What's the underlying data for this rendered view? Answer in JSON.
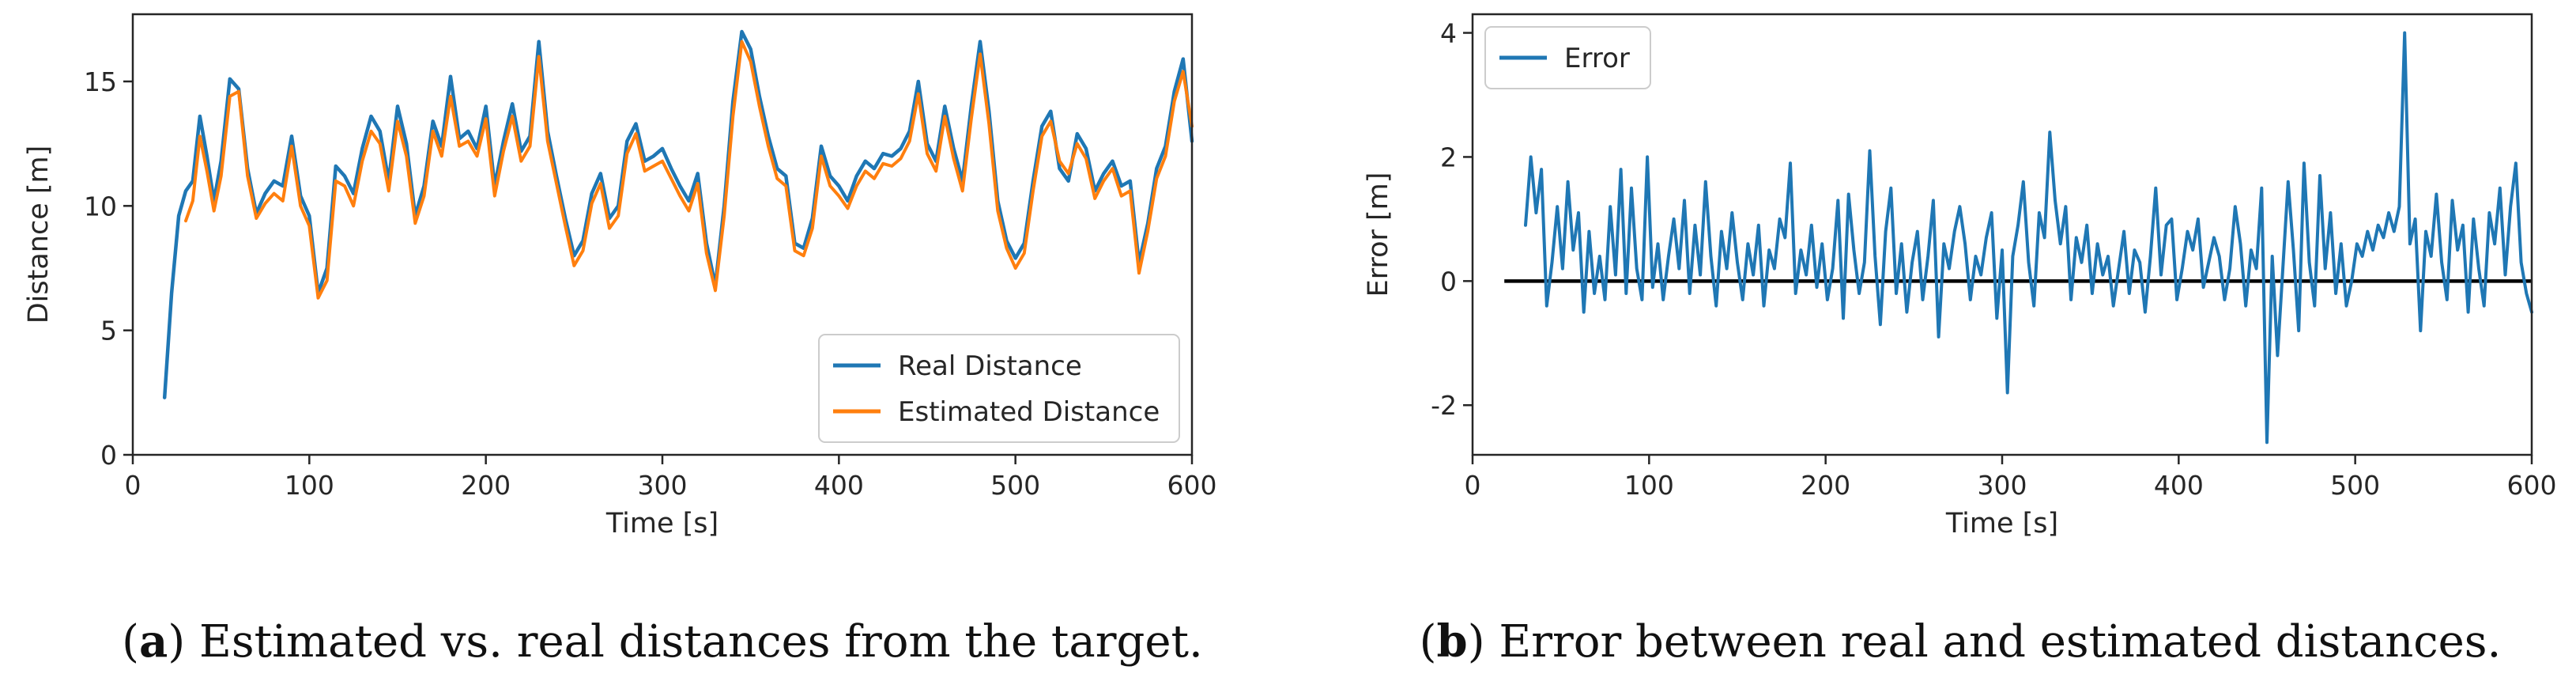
{
  "colors": {
    "real": "#1f77b4",
    "estimated": "#ff7f0e",
    "error": "#1f77b4",
    "zero_line": "#000000",
    "legend_border": "#cccccc"
  },
  "chart_data": [
    {
      "type": "line",
      "caption_letter": "a",
      "caption_open": "(",
      "caption_close": ")",
      "caption_text": " Estimated vs. real distances from the target.",
      "title": "",
      "xlabel": "Time [s]",
      "ylabel": "Distance [m]",
      "xlim": [
        0,
        600
      ],
      "ylim": [
        0,
        17.7
      ],
      "xticks": [
        0,
        100,
        200,
        300,
        400,
        500,
        600
      ],
      "yticks": [
        0,
        5,
        10,
        15
      ],
      "grid": false,
      "legend_position": "lower-right",
      "series": [
        {
          "name": "Real Distance",
          "x": [
            18,
            22,
            26,
            30,
            34,
            38,
            42,
            46,
            50,
            55,
            60,
            65,
            70,
            75,
            80,
            85,
            90,
            95,
            100,
            105,
            110,
            115,
            120,
            125,
            130,
            135,
            140,
            145,
            150,
            155,
            160,
            165,
            170,
            175,
            180,
            185,
            190,
            195,
            200,
            205,
            210,
            215,
            220,
            225,
            230,
            235,
            240,
            245,
            250,
            255,
            260,
            265,
            270,
            275,
            280,
            285,
            290,
            295,
            300,
            305,
            310,
            315,
            320,
            325,
            330,
            335,
            340,
            345,
            350,
            355,
            360,
            365,
            370,
            375,
            380,
            385,
            390,
            395,
            400,
            405,
            410,
            415,
            420,
            425,
            430,
            435,
            440,
            445,
            450,
            455,
            460,
            465,
            470,
            475,
            480,
            485,
            490,
            495,
            500,
            505,
            510,
            515,
            520,
            525,
            530,
            535,
            540,
            545,
            550,
            555,
            560,
            565,
            570,
            575,
            580,
            585,
            590,
            595,
            600
          ],
          "y": [
            2.3,
            6.5,
            9.6,
            10.6,
            11.0,
            13.6,
            12.0,
            10.2,
            11.8,
            15.1,
            14.7,
            11.5,
            9.7,
            10.5,
            11.0,
            10.8,
            12.8,
            10.4,
            9.6,
            6.5,
            7.5,
            11.6,
            11.2,
            10.5,
            12.3,
            13.6,
            13.0,
            11.0,
            14.0,
            12.5,
            9.6,
            10.8,
            13.4,
            12.4,
            15.2,
            12.7,
            13.0,
            12.3,
            14.0,
            10.8,
            12.6,
            14.1,
            12.2,
            12.8,
            16.6,
            13.0,
            11.2,
            9.5,
            8.0,
            8.6,
            10.5,
            11.3,
            9.5,
            10.0,
            12.6,
            13.3,
            11.8,
            12.0,
            12.3,
            11.5,
            10.8,
            10.2,
            11.3,
            8.5,
            6.8,
            10.0,
            14.2,
            17.0,
            16.3,
            14.4,
            12.8,
            11.5,
            11.2,
            8.5,
            8.3,
            9.5,
            12.4,
            11.2,
            10.8,
            10.2,
            11.2,
            11.8,
            11.5,
            12.1,
            12.0,
            12.3,
            13.0,
            15.0,
            12.5,
            11.8,
            14.0,
            12.3,
            11.0,
            14.0,
            16.6,
            13.8,
            10.2,
            8.6,
            7.9,
            8.5,
            11.0,
            13.2,
            13.8,
            11.5,
            11.0,
            12.9,
            12.3,
            10.6,
            11.3,
            11.8,
            10.8,
            11.0,
            7.7,
            9.3,
            11.5,
            12.4,
            14.6,
            15.9,
            12.6
          ]
        },
        {
          "name": "Estimated Distance",
          "x": [
            30,
            34,
            38,
            42,
            46,
            50,
            55,
            60,
            65,
            70,
            75,
            80,
            85,
            90,
            95,
            100,
            105,
            110,
            115,
            120,
            125,
            130,
            135,
            140,
            145,
            150,
            155,
            160,
            165,
            170,
            175,
            180,
            185,
            190,
            195,
            200,
            205,
            210,
            215,
            220,
            225,
            230,
            235,
            240,
            245,
            250,
            255,
            260,
            265,
            270,
            275,
            280,
            285,
            290,
            295,
            300,
            305,
            310,
            315,
            320,
            325,
            330,
            335,
            340,
            345,
            350,
            355,
            360,
            365,
            370,
            375,
            380,
            385,
            390,
            395,
            400,
            405,
            410,
            415,
            420,
            425,
            430,
            435,
            440,
            445,
            450,
            455,
            460,
            465,
            470,
            475,
            480,
            485,
            490,
            495,
            500,
            505,
            510,
            515,
            520,
            525,
            530,
            535,
            540,
            545,
            550,
            555,
            560,
            565,
            570,
            575,
            580,
            585,
            590,
            595,
            600
          ],
          "y": [
            9.4,
            10.2,
            12.8,
            11.4,
            9.8,
            11.2,
            14.4,
            14.6,
            11.2,
            9.5,
            10.1,
            10.5,
            10.2,
            12.4,
            10.0,
            9.2,
            6.3,
            7.0,
            11.0,
            10.8,
            10.0,
            11.8,
            13.0,
            12.5,
            10.6,
            13.4,
            12.0,
            9.3,
            10.4,
            13.0,
            12.0,
            14.4,
            12.4,
            12.6,
            12.0,
            13.5,
            10.4,
            12.2,
            13.6,
            11.8,
            12.4,
            16.0,
            12.6,
            10.9,
            9.2,
            7.6,
            8.2,
            10.1,
            10.9,
            9.1,
            9.6,
            12.1,
            12.9,
            11.4,
            11.6,
            11.8,
            11.1,
            10.4,
            9.8,
            10.9,
            8.1,
            6.6,
            9.6,
            13.6,
            16.6,
            15.8,
            14.0,
            12.4,
            11.1,
            10.8,
            8.2,
            8.0,
            9.1,
            12.0,
            10.8,
            10.4,
            9.9,
            10.8,
            11.4,
            11.1,
            11.7,
            11.6,
            11.9,
            12.6,
            14.5,
            12.1,
            11.4,
            13.6,
            11.9,
            10.6,
            13.5,
            16.1,
            13.3,
            9.8,
            8.3,
            7.5,
            8.1,
            10.6,
            12.8,
            13.4,
            11.8,
            11.3,
            12.5,
            11.9,
            10.3,
            11.0,
            11.5,
            10.4,
            10.6,
            7.3,
            9.0,
            11.1,
            12.0,
            14.2,
            15.4,
            13.2
          ]
        }
      ]
    },
    {
      "type": "line",
      "caption_letter": "b",
      "caption_open": "(",
      "caption_close": ")",
      "caption_text": " Error between real and estimated distances.",
      "title": "",
      "xlabel": "Time [s]",
      "ylabel": "Error [m]",
      "xlim": [
        0,
        600
      ],
      "ylim": [
        -2.8,
        4.3
      ],
      "xticks": [
        0,
        100,
        200,
        300,
        400,
        500,
        600
      ],
      "yticks": [
        -2,
        0,
        2,
        4
      ],
      "grid": false,
      "legend_position": "upper-left",
      "zero_line": {
        "y": 0,
        "x_start": 18,
        "x_end": 600
      },
      "series": [
        {
          "name": "Error",
          "x": [
            30,
            33,
            36,
            39,
            42,
            45,
            48,
            51,
            54,
            57,
            60,
            63,
            66,
            69,
            72,
            75,
            78,
            81,
            84,
            87,
            90,
            93,
            96,
            99,
            102,
            105,
            108,
            111,
            114,
            117,
            120,
            123,
            126,
            129,
            132,
            135,
            138,
            141,
            144,
            147,
            150,
            153,
            156,
            159,
            162,
            165,
            168,
            171,
            174,
            177,
            180,
            183,
            186,
            189,
            192,
            195,
            198,
            201,
            204,
            207,
            210,
            213,
            216,
            219,
            222,
            225,
            228,
            231,
            234,
            237,
            240,
            243,
            246,
            249,
            252,
            255,
            258,
            261,
            264,
            267,
            270,
            273,
            276,
            279,
            282,
            285,
            288,
            291,
            294,
            297,
            300,
            303,
            306,
            309,
            312,
            315,
            318,
            321,
            324,
            327,
            330,
            333,
            336,
            339,
            342,
            345,
            348,
            351,
            354,
            357,
            360,
            363,
            366,
            369,
            372,
            375,
            378,
            381,
            384,
            387,
            390,
            393,
            396,
            399,
            402,
            405,
            408,
            411,
            414,
            417,
            420,
            423,
            426,
            429,
            432,
            435,
            438,
            441,
            444,
            447,
            450,
            453,
            456,
            459,
            462,
            465,
            468,
            471,
            474,
            477,
            480,
            483,
            486,
            489,
            492,
            495,
            498,
            501,
            504,
            507,
            510,
            513,
            516,
            519,
            522,
            525,
            528,
            531,
            534,
            537,
            540,
            543,
            546,
            549,
            552,
            555,
            558,
            561,
            564,
            567,
            570,
            573,
            576,
            579,
            582,
            585,
            588,
            591,
            594,
            597,
            600
          ],
          "y": [
            0.9,
            2.0,
            1.1,
            1.8,
            -0.4,
            0.3,
            1.2,
            0.2,
            1.6,
            0.5,
            1.1,
            -0.5,
            0.8,
            -0.2,
            0.4,
            -0.3,
            1.2,
            0.1,
            1.8,
            -0.2,
            1.5,
            0.2,
            -0.3,
            2.0,
            -0.1,
            0.6,
            -0.3,
            0.4,
            1.0,
            0.2,
            1.3,
            -0.2,
            0.9,
            0.1,
            1.6,
            0.4,
            -0.4,
            0.8,
            0.2,
            1.1,
            0.3,
            -0.3,
            0.6,
            0.1,
            0.9,
            -0.4,
            0.5,
            0.2,
            1.0,
            0.7,
            1.9,
            -0.2,
            0.5,
            0.1,
            0.9,
            -0.1,
            0.6,
            -0.3,
            0.2,
            1.3,
            -0.6,
            1.4,
            0.5,
            -0.2,
            0.3,
            2.1,
            0.4,
            -0.7,
            0.8,
            1.5,
            -0.2,
            0.6,
            -0.5,
            0.3,
            0.8,
            -0.3,
            0.4,
            1.3,
            -0.9,
            0.6,
            0.2,
            0.8,
            1.2,
            0.6,
            -0.3,
            0.4,
            0.1,
            0.7,
            1.1,
            -0.6,
            0.5,
            -1.8,
            0.4,
            0.9,
            1.6,
            0.3,
            -0.4,
            1.1,
            0.7,
            2.4,
            1.3,
            0.6,
            1.2,
            -0.3,
            0.7,
            0.3,
            0.9,
            -0.2,
            0.6,
            0.1,
            0.4,
            -0.4,
            0.2,
            0.8,
            -0.2,
            0.5,
            0.3,
            -0.5,
            0.4,
            1.5,
            0.1,
            0.9,
            1.0,
            -0.3,
            0.2,
            0.8,
            0.5,
            1.0,
            -0.1,
            0.3,
            0.7,
            0.4,
            -0.3,
            0.2,
            1.2,
            0.6,
            -0.4,
            0.5,
            0.2,
            1.5,
            -2.6,
            0.4,
            -1.2,
            0.2,
            1.6,
            0.5,
            -0.8,
            1.9,
            0.3,
            -0.4,
            1.7,
            0.2,
            1.1,
            -0.2,
            0.6,
            -0.4,
            0.0,
            0.6,
            0.4,
            0.8,
            0.5,
            0.9,
            0.7,
            1.1,
            0.8,
            1.2,
            4.0,
            0.6,
            1.0,
            -0.8,
            0.8,
            0.4,
            1.4,
            0.3,
            -0.3,
            1.3,
            0.5,
            0.9,
            -0.5,
            1.0,
            0.2,
            -0.4,
            1.1,
            0.6,
            1.5,
            0.1,
            1.2,
            1.9,
            0.3,
            -0.2,
            -0.5
          ]
        }
      ]
    }
  ]
}
